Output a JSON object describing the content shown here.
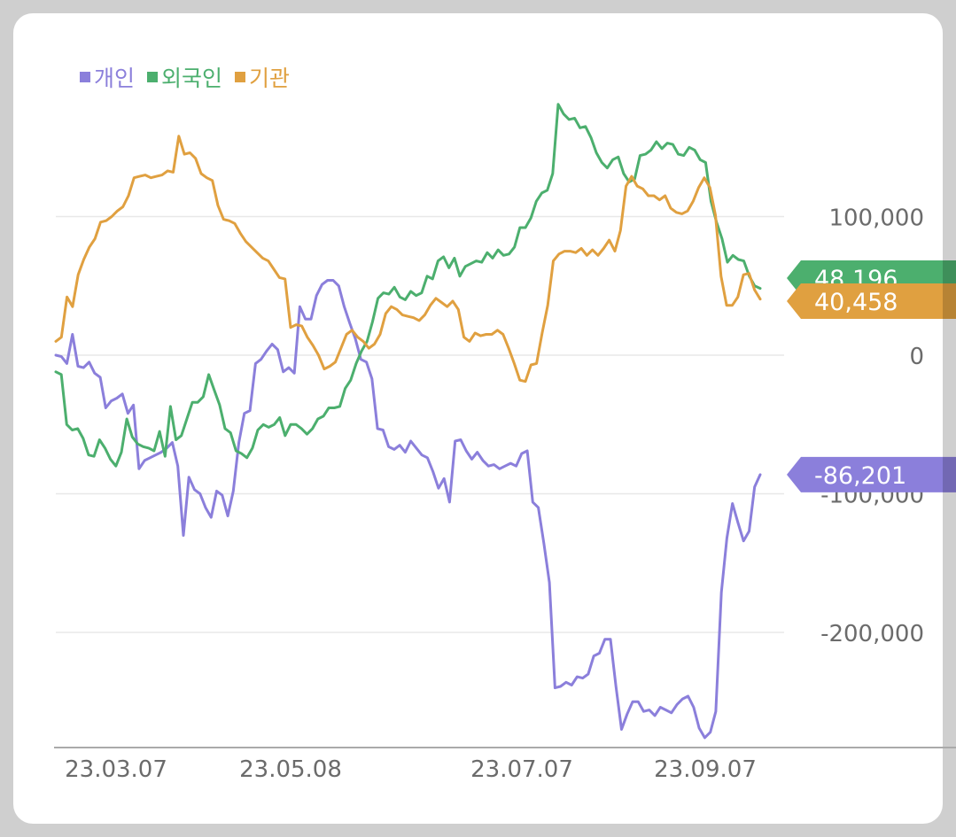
{
  "chart_data": {
    "type": "line",
    "x_ticks": [
      "23.03.07",
      "23.05.08",
      "23.07.07",
      "23.09.07"
    ],
    "y_ticks": [
      100000,
      0,
      -100000,
      -200000
    ],
    "y_tick_labels": [
      "100,000",
      "0",
      "-100,000",
      "-200,000"
    ],
    "ylim": [
      -283000,
      164000
    ],
    "grid": true,
    "legend_position": "top-left",
    "series": [
      {
        "name": "개인",
        "color": "#8b7fdb",
        "last_value_label": "-86,201",
        "values": [
          0,
          -1000,
          -6000,
          15000,
          -8000,
          -9000,
          -5000,
          -13000,
          -16000,
          -38000,
          -33000,
          -31000,
          -28000,
          -42000,
          -36000,
          -82000,
          -76000,
          -74000,
          -72000,
          -70000,
          -67000,
          -63000,
          -80000,
          -130000,
          -88000,
          -97000,
          -100000,
          -110000,
          -117000,
          -98000,
          -101000,
          -116000,
          -98000,
          -63000,
          -42000,
          -40000,
          -6000,
          -3000,
          3000,
          8000,
          4000,
          -12000,
          -9000,
          -13000,
          35000,
          26000,
          26000,
          43000,
          51000,
          54000,
          54000,
          50000,
          35000,
          23000,
          12000,
          -3000,
          -5000,
          -17000,
          -53000,
          -54000,
          -66000,
          -68000,
          -65000,
          -70000,
          -62000,
          -67000,
          -72000,
          -74000,
          -84000,
          -96000,
          -89000,
          -106000,
          -62000,
          -61000,
          -69000,
          -75000,
          -70000,
          -76000,
          -80000,
          -79000,
          -82000,
          -80000,
          -78000,
          -80000,
          -71000,
          -69000,
          -106000,
          -110000,
          -136000,
          -164000,
          -240000,
          -239000,
          -236000,
          -238000,
          -232000,
          -233000,
          -230000,
          -217000,
          -215000,
          -205000,
          -205000,
          -239000,
          -270000,
          -259000,
          -250000,
          -250000,
          -257000,
          -256000,
          -260000,
          -254000,
          -256000,
          -258000,
          -252000,
          -248000,
          -246000,
          -254000,
          -269000,
          -276000,
          -272000,
          -257000,
          -171000,
          -132000,
          -107000,
          -121000,
          -134000,
          -127000,
          -95000,
          -86201
        ]
      },
      {
        "name": "외국인",
        "color": "#4caf6e",
        "last_value_label": "48,196",
        "values": [
          -12000,
          -14000,
          -50000,
          -54000,
          -53000,
          -60000,
          -72000,
          -73000,
          -61000,
          -67000,
          -75000,
          -80000,
          -70000,
          -46000,
          -59000,
          -64000,
          -66000,
          -67000,
          -69000,
          -55000,
          -73000,
          -37000,
          -61000,
          -58000,
          -46000,
          -34000,
          -34000,
          -30000,
          -14000,
          -25000,
          -36000,
          -53000,
          -56000,
          -69000,
          -71000,
          -74000,
          -67000,
          -54000,
          -50000,
          -52000,
          -50000,
          -45000,
          -58000,
          -50000,
          -50000,
          -53000,
          -57000,
          -53000,
          -46000,
          -44000,
          -38000,
          -38000,
          -37000,
          -24000,
          -18000,
          -6000,
          3000,
          10000,
          24000,
          41000,
          45000,
          44000,
          49000,
          42000,
          40000,
          46000,
          43000,
          45000,
          57000,
          55000,
          68000,
          71000,
          63000,
          70000,
          57000,
          64000,
          66000,
          68000,
          67000,
          74000,
          70000,
          76000,
          72000,
          73000,
          78000,
          92000,
          92000,
          99000,
          111000,
          117000,
          119000,
          131000,
          181000,
          174000,
          170000,
          171000,
          164000,
          165000,
          157000,
          146000,
          139000,
          135000,
          141000,
          143000,
          131000,
          125000,
          127000,
          144000,
          145000,
          148000,
          154000,
          149000,
          153000,
          152000,
          145000,
          144000,
          150000,
          148000,
          141000,
          139000,
          111000,
          96000,
          84000,
          67000,
          72000,
          69000,
          68000,
          57000,
          50000,
          48196
        ]
      },
      {
        "name": "기관",
        "color": "#e0a040",
        "last_value_label": "40,458",
        "values": [
          10000,
          13000,
          42000,
          35000,
          58000,
          69000,
          78000,
          84000,
          96000,
          97000,
          100000,
          104000,
          107000,
          115000,
          128000,
          129000,
          130000,
          128000,
          129000,
          130000,
          133000,
          132000,
          158000,
          145000,
          146000,
          142000,
          131000,
          128000,
          126000,
          108000,
          98000,
          97000,
          95000,
          88000,
          82000,
          78000,
          74000,
          70000,
          68000,
          62000,
          56000,
          55000,
          20000,
          22000,
          21000,
          13000,
          7000,
          0,
          -10000,
          -8000,
          -5000,
          5000,
          15000,
          18000,
          13000,
          10000,
          5000,
          8000,
          15000,
          30000,
          35000,
          33000,
          29000,
          28000,
          27000,
          25000,
          29000,
          36000,
          41000,
          38000,
          35000,
          39000,
          33000,
          13000,
          10000,
          16000,
          14000,
          15000,
          15000,
          18000,
          15000,
          5000,
          -6000,
          -18000,
          -19000,
          -7000,
          -6000,
          16000,
          36000,
          68000,
          73000,
          75000,
          75000,
          74000,
          77000,
          72000,
          76000,
          72000,
          77000,
          83000,
          75000,
          90000,
          122000,
          129000,
          122000,
          120000,
          115000,
          115000,
          112000,
          115000,
          106000,
          103000,
          102000,
          104000,
          111000,
          121000,
          128000,
          121000,
          101000,
          57000,
          36000,
          36000,
          42000,
          58000,
          59000,
          47000,
          40458
        ]
      }
    ]
  }
}
